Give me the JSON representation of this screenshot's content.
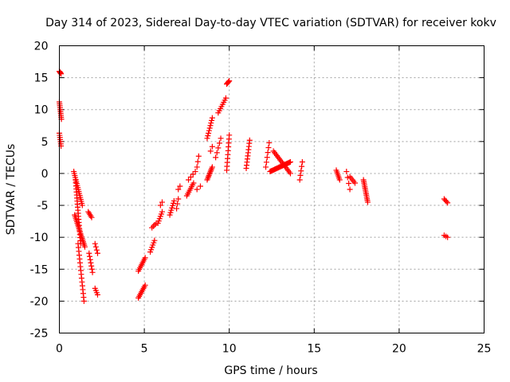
{
  "chart_data": {
    "type": "scatter",
    "title": "Day 314 of 2023, Sidereal Day-to-day VTEC variation (SDTVAR) for receiver kokv",
    "xlabel": "GPS time / hours",
    "ylabel": "SDTVAR / TECUs",
    "xlim": [
      0,
      25
    ],
    "ylim": [
      -25,
      20
    ],
    "xticks": [
      0,
      5,
      10,
      15,
      20,
      25
    ],
    "yticks": [
      -25,
      -20,
      -15,
      -10,
      -5,
      0,
      5,
      10,
      15,
      20
    ],
    "grid": true,
    "marker": "+",
    "color": "#ff0000",
    "series": [
      {
        "name": "SDTVAR",
        "segments": [
          {
            "x0": 0.0,
            "y0": 16.0,
            "x1": 0.1,
            "y1": 15.6,
            "n": 6
          },
          {
            "x0": 0.0,
            "y0": 11.2,
            "x1": 0.12,
            "y1": 8.5,
            "n": 10
          },
          {
            "x0": 0.0,
            "y0": 6.3,
            "x1": 0.1,
            "y1": 4.3,
            "n": 7
          },
          {
            "x0": 0.85,
            "y0": 0.3,
            "x1": 1.35,
            "y1": -5.0,
            "n": 18
          },
          {
            "x0": 0.95,
            "y0": -1.0,
            "x1": 1.25,
            "y1": -11.0,
            "n": 22
          },
          {
            "x0": 0.9,
            "y0": -6.5,
            "x1": 1.5,
            "y1": -11.5,
            "n": 20
          },
          {
            "x0": 1.1,
            "y0": -11.0,
            "x1": 1.45,
            "y1": -20.0,
            "n": 16
          },
          {
            "x0": 1.7,
            "y0": -6.0,
            "x1": 1.9,
            "y1": -6.9,
            "n": 5
          },
          {
            "x0": 1.75,
            "y0": -12.5,
            "x1": 1.95,
            "y1": -15.5,
            "n": 7
          },
          {
            "x0": 2.1,
            "y0": -11.0,
            "x1": 2.25,
            "y1": -12.5,
            "n": 4
          },
          {
            "x0": 2.1,
            "y0": -18.0,
            "x1": 2.25,
            "y1": -19.0,
            "n": 4
          },
          {
            "x0": 4.65,
            "y0": -15.3,
            "x1": 5.05,
            "y1": -13.2,
            "n": 9
          },
          {
            "x0": 4.65,
            "y0": -19.5,
            "x1": 5.05,
            "y1": -17.5,
            "n": 9
          },
          {
            "x0": 5.35,
            "y0": -12.3,
            "x1": 5.6,
            "y1": -10.5,
            "n": 6
          },
          {
            "x0": 5.45,
            "y0": -8.5,
            "x1": 5.7,
            "y1": -7.8,
            "n": 4
          },
          {
            "x0": 5.8,
            "y0": -7.8,
            "x1": 6.05,
            "y1": -6.0,
            "n": 6
          },
          {
            "x0": 5.95,
            "y0": -5.0,
            "x1": 6.05,
            "y1": -4.5,
            "n": 2
          },
          {
            "x0": 6.5,
            "y0": -6.5,
            "x1": 6.75,
            "y1": -4.3,
            "n": 7
          },
          {
            "x0": 6.9,
            "y0": -5.5,
            "x1": 7.0,
            "y1": -4.0,
            "n": 3
          },
          {
            "x0": 7.0,
            "y0": -2.5,
            "x1": 7.1,
            "y1": -2.0,
            "n": 2
          },
          {
            "x0": 7.5,
            "y0": -3.5,
            "x1": 7.9,
            "y1": -1.5,
            "n": 8
          },
          {
            "x0": 7.6,
            "y0": -1.0,
            "x1": 8.0,
            "y1": 0.3,
            "n": 4
          },
          {
            "x0": 8.1,
            "y0": -2.5,
            "x1": 8.3,
            "y1": -2.0,
            "n": 2
          },
          {
            "x0": 8.1,
            "y0": 1.0,
            "x1": 8.2,
            "y1": 2.7,
            "n": 3
          },
          {
            "x0": 8.7,
            "y0": -1.0,
            "x1": 9.0,
            "y1": 1.0,
            "n": 10
          },
          {
            "x0": 8.7,
            "y0": 5.5,
            "x1": 9.0,
            "y1": 8.7,
            "n": 9
          },
          {
            "x0": 8.9,
            "y0": 3.5,
            "x1": 9.0,
            "y1": 4.2,
            "n": 2
          },
          {
            "x0": 9.2,
            "y0": 2.5,
            "x1": 9.5,
            "y1": 5.5,
            "n": 5
          },
          {
            "x0": 9.35,
            "y0": 9.5,
            "x1": 9.8,
            "y1": 11.8,
            "n": 8
          },
          {
            "x0": 9.85,
            "y0": 14.0,
            "x1": 10.0,
            "y1": 14.5,
            "n": 5
          },
          {
            "x0": 9.85,
            "y0": 0.5,
            "x1": 10.0,
            "y1": 6.0,
            "n": 10
          },
          {
            "x0": 11.0,
            "y0": 0.8,
            "x1": 11.2,
            "y1": 5.2,
            "n": 10
          },
          {
            "x0": 12.15,
            "y0": 1.0,
            "x1": 12.35,
            "y1": 4.8,
            "n": 6
          },
          {
            "x0": 12.4,
            "y0": 0.3,
            "x1": 13.6,
            "y1": 1.8,
            "n": 24
          },
          {
            "x0": 12.6,
            "y0": 3.5,
            "x1": 13.6,
            "y1": 0.0,
            "n": 16
          },
          {
            "x0": 14.15,
            "y0": -1.0,
            "x1": 14.3,
            "y1": 1.8,
            "n": 5
          },
          {
            "x0": 16.3,
            "y0": 0.5,
            "x1": 16.5,
            "y1": -1.0,
            "n": 7
          },
          {
            "x0": 16.9,
            "y0": 0.3,
            "x1": 17.1,
            "y1": -2.5,
            "n": 4
          },
          {
            "x0": 17.1,
            "y0": -0.5,
            "x1": 17.4,
            "y1": -1.5,
            "n": 5
          },
          {
            "x0": 17.9,
            "y0": -1.0,
            "x1": 18.15,
            "y1": -4.5,
            "n": 14
          },
          {
            "x0": 22.65,
            "y0": -4.0,
            "x1": 22.85,
            "y1": -4.6,
            "n": 4
          },
          {
            "x0": 22.65,
            "y0": -9.7,
            "x1": 22.85,
            "y1": -10.0,
            "n": 3
          }
        ]
      }
    ]
  }
}
